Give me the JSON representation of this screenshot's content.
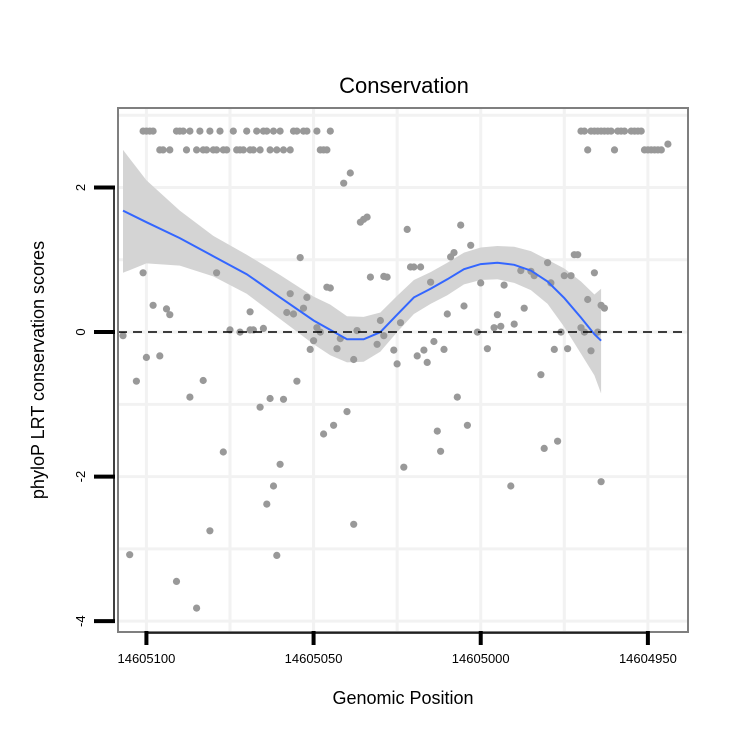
{
  "chart_data": {
    "type": "scatter",
    "title": "Conservation",
    "xlabel": "Genomic Position",
    "ylabel": "phyloP LRT conservation scores",
    "x_reversed": true,
    "xlim": [
      14605108.5,
      14604938
    ],
    "ylim": [
      -4.15,
      3.1
    ],
    "x_ticks": [
      14605100,
      14605050,
      14605000,
      14604950
    ],
    "x_tick_labels": [
      "14605100",
      "14605050",
      "14605000",
      "14604950"
    ],
    "y_ticks": [
      -4,
      -2,
      0,
      2
    ],
    "y_tick_labels": [
      "-4",
      "-2",
      "0",
      "2"
    ],
    "reference_line": {
      "y": 0,
      "style": "dashed"
    },
    "colors": {
      "points": "#999999",
      "smooth_line": "#3366ff",
      "ribbon": "#d4d4d4",
      "panel_border": "#7f7f7f",
      "grid": "#f2f2f2"
    },
    "series": [
      {
        "name": "phyloP LRT score",
        "kind": "points",
        "points": [
          [
            14605101,
            2.78
          ],
          [
            14605100,
            2.78
          ],
          [
            14605099,
            2.78
          ],
          [
            14605098,
            2.78
          ],
          [
            14605096,
            2.52
          ],
          [
            14605095,
            2.52
          ],
          [
            14605093,
            2.52
          ],
          [
            14605091,
            2.78
          ],
          [
            14605090,
            2.78
          ],
          [
            14605089,
            2.78
          ],
          [
            14605088,
            2.52
          ],
          [
            14605087,
            2.78
          ],
          [
            14605085,
            2.52
          ],
          [
            14605084,
            2.78
          ],
          [
            14605083,
            2.52
          ],
          [
            14605082,
            2.52
          ],
          [
            14605081,
            2.78
          ],
          [
            14605080,
            2.52
          ],
          [
            14605079,
            2.52
          ],
          [
            14605078,
            2.78
          ],
          [
            14605077,
            2.52
          ],
          [
            14605076,
            2.52
          ],
          [
            14605074,
            2.78
          ],
          [
            14605073,
            2.52
          ],
          [
            14605072,
            2.52
          ],
          [
            14605071,
            2.52
          ],
          [
            14605070,
            2.78
          ],
          [
            14605069,
            2.52
          ],
          [
            14605068,
            2.52
          ],
          [
            14605067,
            2.78
          ],
          [
            14605066,
            2.52
          ],
          [
            14605065,
            2.78
          ],
          [
            14605064,
            2.78
          ],
          [
            14605063,
            2.52
          ],
          [
            14605062,
            2.78
          ],
          [
            14605061,
            2.52
          ],
          [
            14605060,
            2.78
          ],
          [
            14605059,
            2.52
          ],
          [
            14605057,
            2.52
          ],
          [
            14605056,
            2.78
          ],
          [
            14605055,
            2.78
          ],
          [
            14605053,
            2.78
          ],
          [
            14605052,
            2.78
          ],
          [
            14605049,
            2.78
          ],
          [
            14605048,
            2.52
          ],
          [
            14605047,
            2.52
          ],
          [
            14605046,
            2.52
          ],
          [
            14605045,
            2.78
          ],
          [
            14604970,
            2.78
          ],
          [
            14604969,
            2.78
          ],
          [
            14604968,
            2.52
          ],
          [
            14604967,
            2.78
          ],
          [
            14604966,
            2.78
          ],
          [
            14604965,
            2.78
          ],
          [
            14604964,
            2.78
          ],
          [
            14604963,
            2.78
          ],
          [
            14604962,
            2.78
          ],
          [
            14604961,
            2.78
          ],
          [
            14604960,
            2.52
          ],
          [
            14604959,
            2.78
          ],
          [
            14604958,
            2.78
          ],
          [
            14604957,
            2.78
          ],
          [
            14604955,
            2.78
          ],
          [
            14604954,
            2.78
          ],
          [
            14604953,
            2.78
          ],
          [
            14604952,
            2.78
          ],
          [
            14604951,
            2.52
          ],
          [
            14604950,
            2.52
          ],
          [
            14604949,
            2.52
          ],
          [
            14604948,
            2.52
          ],
          [
            14604947,
            2.52
          ],
          [
            14604946,
            2.52
          ],
          [
            14604944,
            2.6
          ],
          [
            14605107,
            -0.05
          ],
          [
            14605105,
            -3.08
          ],
          [
            14605103,
            -0.68
          ],
          [
            14605101,
            0.82
          ],
          [
            14605100,
            -0.35
          ],
          [
            14605098,
            0.37
          ],
          [
            14605096,
            -0.33
          ],
          [
            14605094,
            0.32
          ],
          [
            14605093,
            0.24
          ],
          [
            14605091,
            -3.45
          ],
          [
            14605087,
            -0.9
          ],
          [
            14605085,
            -3.82
          ],
          [
            14605083,
            -0.67
          ],
          [
            14605081,
            -2.75
          ],
          [
            14605079,
            0.82
          ],
          [
            14605077,
            -1.66
          ],
          [
            14605075,
            0.03
          ],
          [
            14605072,
            0.0
          ],
          [
            14605069,
            0.28
          ],
          [
            14605069,
            0.03
          ],
          [
            14605068,
            0.03
          ],
          [
            14605066,
            -1.04
          ],
          [
            14605065,
            0.05
          ],
          [
            14605064,
            -2.38
          ],
          [
            14605063,
            -0.92
          ],
          [
            14605062,
            -2.13
          ],
          [
            14605061,
            -3.09
          ],
          [
            14605060,
            -1.83
          ],
          [
            14605059,
            -0.93
          ],
          [
            14605058,
            0.27
          ],
          [
            14605057,
            0.53
          ],
          [
            14605056,
            0.25
          ],
          [
            14605055,
            -0.68
          ],
          [
            14605054,
            1.03
          ],
          [
            14605053,
            0.33
          ],
          [
            14605052,
            0.48
          ],
          [
            14605051,
            -0.24
          ],
          [
            14605050,
            -0.12
          ],
          [
            14605049,
            0.06
          ],
          [
            14605048,
            0.0
          ],
          [
            14605047,
            -1.41
          ],
          [
            14605046,
            0.62
          ],
          [
            14605045,
            0.61
          ],
          [
            14605044,
            -1.29
          ],
          [
            14605043,
            -0.23
          ],
          [
            14605042,
            -0.09
          ],
          [
            14605041,
            2.06
          ],
          [
            14605040,
            -1.1
          ],
          [
            14605039,
            2.2
          ],
          [
            14605038,
            -2.66
          ],
          [
            14605038,
            -0.38
          ],
          [
            14605037,
            0.02
          ],
          [
            14605036,
            1.52
          ],
          [
            14605035,
            1.56
          ],
          [
            14605034,
            1.59
          ],
          [
            14605033,
            0.76
          ],
          [
            14605031,
            -0.17
          ],
          [
            14605030,
            0.16
          ],
          [
            14605029,
            -0.05
          ],
          [
            14605029,
            0.77
          ],
          [
            14605028,
            0.76
          ],
          [
            14605026,
            -0.25
          ],
          [
            14605025,
            -0.44
          ],
          [
            14605024,
            0.13
          ],
          [
            14605023,
            -1.87
          ],
          [
            14605022,
            1.42
          ],
          [
            14605021,
            0.9
          ],
          [
            14605020,
            0.9
          ],
          [
            14605019,
            -0.33
          ],
          [
            14605018,
            0.9
          ],
          [
            14605017,
            -0.25
          ],
          [
            14605016,
            -0.42
          ],
          [
            14605015,
            0.69
          ],
          [
            14605014,
            -0.13
          ],
          [
            14605013,
            -1.37
          ],
          [
            14605012,
            -1.65
          ],
          [
            14605011,
            -0.24
          ],
          [
            14605010,
            0.25
          ],
          [
            14605009,
            1.04
          ],
          [
            14605008,
            1.1
          ],
          [
            14605007,
            -0.9
          ],
          [
            14605006,
            1.48
          ],
          [
            14605005,
            0.36
          ],
          [
            14605004,
            -1.29
          ],
          [
            14605003,
            1.2
          ],
          [
            14605001,
            0.0
          ],
          [
            14605000,
            0.68
          ],
          [
            14604998,
            -0.23
          ],
          [
            14604996,
            0.06
          ],
          [
            14604995,
            0.24
          ],
          [
            14604994,
            0.08
          ],
          [
            14604993,
            0.65
          ],
          [
            14604991,
            -2.13
          ],
          [
            14604990,
            0.11
          ],
          [
            14604988,
            0.85
          ],
          [
            14604987,
            0.33
          ],
          [
            14604985,
            0.84
          ],
          [
            14604984,
            0.78
          ],
          [
            14604982,
            -0.59
          ],
          [
            14604981,
            -1.61
          ],
          [
            14604980,
            0.96
          ],
          [
            14604979,
            0.68
          ],
          [
            14604978,
            -0.24
          ],
          [
            14604977,
            -1.51
          ],
          [
            14604976,
            0.0
          ],
          [
            14604975,
            0.78
          ],
          [
            14604974,
            -0.23
          ],
          [
            14604973,
            0.78
          ],
          [
            14604972,
            1.07
          ],
          [
            14604971,
            1.07
          ],
          [
            14604970,
            0.06
          ],
          [
            14604969,
            0.0
          ],
          [
            14604968,
            0.45
          ],
          [
            14604967,
            -0.26
          ],
          [
            14604966,
            0.82
          ],
          [
            14604965,
            0.0
          ],
          [
            14604964,
            0.37
          ],
          [
            14604964,
            -2.07
          ],
          [
            14604963,
            0.33
          ]
        ]
      },
      {
        "name": "loess fit",
        "kind": "line",
        "points": [
          [
            14605107,
            1.68
          ],
          [
            14605100,
            1.52
          ],
          [
            14605090,
            1.3
          ],
          [
            14605080,
            1.05
          ],
          [
            14605070,
            0.8
          ],
          [
            14605060,
            0.48
          ],
          [
            14605050,
            0.16
          ],
          [
            14605045,
            0.03
          ],
          [
            14605040,
            -0.1
          ],
          [
            14605035,
            -0.1
          ],
          [
            14605030,
            0.0
          ],
          [
            14605025,
            0.24
          ],
          [
            14605020,
            0.48
          ],
          [
            14605015,
            0.6
          ],
          [
            14605010,
            0.73
          ],
          [
            14605005,
            0.87
          ],
          [
            14605000,
            0.94
          ],
          [
            14604995,
            0.96
          ],
          [
            14604990,
            0.93
          ],
          [
            14604985,
            0.85
          ],
          [
            14604980,
            0.7
          ],
          [
            14604975,
            0.47
          ],
          [
            14604970,
            0.2
          ],
          [
            14604966,
            -0.03
          ],
          [
            14604964,
            -0.12
          ]
        ]
      },
      {
        "name": "confidence band",
        "kind": "ribbon",
        "points": [
          [
            14605107,
            0.82,
            2.52
          ],
          [
            14605100,
            0.95,
            2.1
          ],
          [
            14605090,
            0.92,
            1.68
          ],
          [
            14605080,
            0.77,
            1.33
          ],
          [
            14605070,
            0.53,
            1.07
          ],
          [
            14605060,
            0.18,
            0.79
          ],
          [
            14605050,
            -0.17,
            0.49
          ],
          [
            14605045,
            -0.32,
            0.38
          ],
          [
            14605040,
            -0.42,
            0.22
          ],
          [
            14605035,
            -0.41,
            0.21
          ],
          [
            14605030,
            -0.27,
            0.27
          ],
          [
            14605025,
            0.0,
            0.5
          ],
          [
            14605020,
            0.25,
            0.72
          ],
          [
            14605015,
            0.39,
            0.83
          ],
          [
            14605010,
            0.51,
            0.96
          ],
          [
            14605005,
            0.66,
            1.1
          ],
          [
            14605000,
            0.72,
            1.17
          ],
          [
            14604995,
            0.73,
            1.19
          ],
          [
            14604990,
            0.68,
            1.18
          ],
          [
            14604985,
            0.58,
            1.12
          ],
          [
            14604980,
            0.39,
            1.0
          ],
          [
            14604975,
            0.07,
            0.88
          ],
          [
            14604970,
            -0.3,
            0.7
          ],
          [
            14604966,
            -0.6,
            0.52
          ],
          [
            14604964,
            -0.85,
            0.6
          ]
        ]
      }
    ]
  }
}
